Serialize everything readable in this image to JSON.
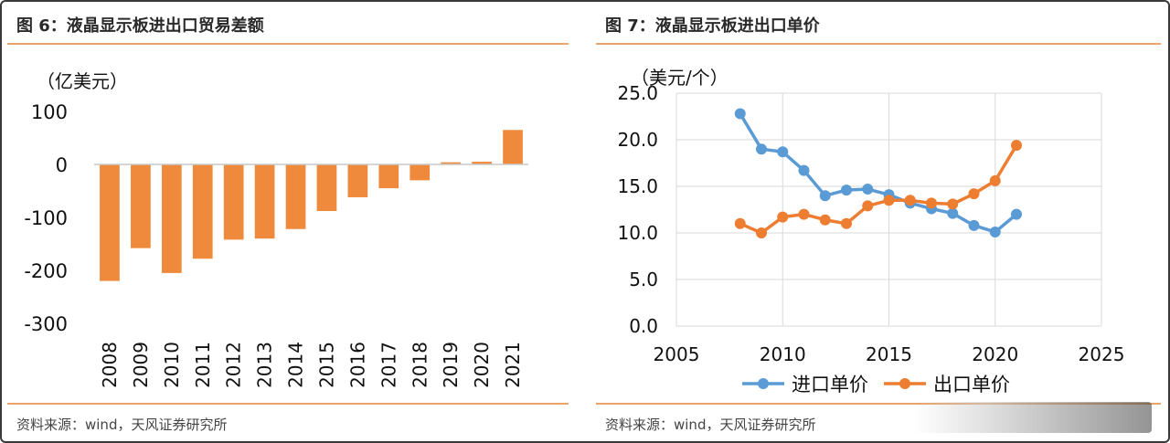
{
  "left": {
    "title": "图 6：液晶显示板进出口贸易差额",
    "source": "资料来源：wind，天风证券研究所",
    "chart_data": {
      "type": "bar",
      "title": "",
      "ylabel": "（亿美元）",
      "xlabel": "",
      "categories": [
        "2008",
        "2009",
        "2010",
        "2011",
        "2012",
        "2013",
        "2014",
        "2015",
        "2016",
        "2017",
        "2018",
        "2019",
        "2020",
        "2021"
      ],
      "values": [
        -220,
        -158,
        -205,
        -178,
        -142,
        -140,
        -122,
        -88,
        -62,
        -45,
        -30,
        4,
        5,
        65
      ],
      "ylim": [
        -300,
        100
      ],
      "yticks": [
        "100",
        "0",
        "-100",
        "-200",
        "-300"
      ],
      "ytick_values": [
        100,
        0,
        -100,
        -200,
        -300
      ],
      "bar_color": "#ef8a3c",
      "grid": false
    }
  },
  "right": {
    "title": "图 7：液晶显示板进出口单价",
    "source": "资料来源：wind，天风证券研究所",
    "chart_data": {
      "type": "line",
      "title": "",
      "ylabel": "（美元/个）",
      "xlabel": "",
      "x": [
        2008,
        2009,
        2010,
        2011,
        2012,
        2013,
        2014,
        2015,
        2016,
        2017,
        2018,
        2019,
        2020,
        2021
      ],
      "series": [
        {
          "name": "进口单价",
          "color": "#5b9bd5",
          "values": [
            22.8,
            19.0,
            18.7,
            16.7,
            14.0,
            14.6,
            14.7,
            14.1,
            13.2,
            12.6,
            12.1,
            10.8,
            10.1,
            12.0
          ]
        },
        {
          "name": "出口单价",
          "color": "#ed7d31",
          "values": [
            11.0,
            10.0,
            11.7,
            12.0,
            11.4,
            11.0,
            12.9,
            13.5,
            13.5,
            13.2,
            13.1,
            14.2,
            15.6,
            19.4
          ]
        }
      ],
      "xlim": [
        2005,
        2025
      ],
      "ylim": [
        0,
        25
      ],
      "xticks": [
        "2005",
        "2010",
        "2015",
        "2020",
        "2025"
      ],
      "xtick_values": [
        2005,
        2010,
        2015,
        2020,
        2025
      ],
      "yticks": [
        "25.0",
        "20.0",
        "15.0",
        "10.0",
        "5.0",
        "0.0"
      ],
      "ytick_values": [
        25,
        20,
        15,
        10,
        5,
        0
      ],
      "grid": true,
      "legend_position": "bottom"
    }
  }
}
